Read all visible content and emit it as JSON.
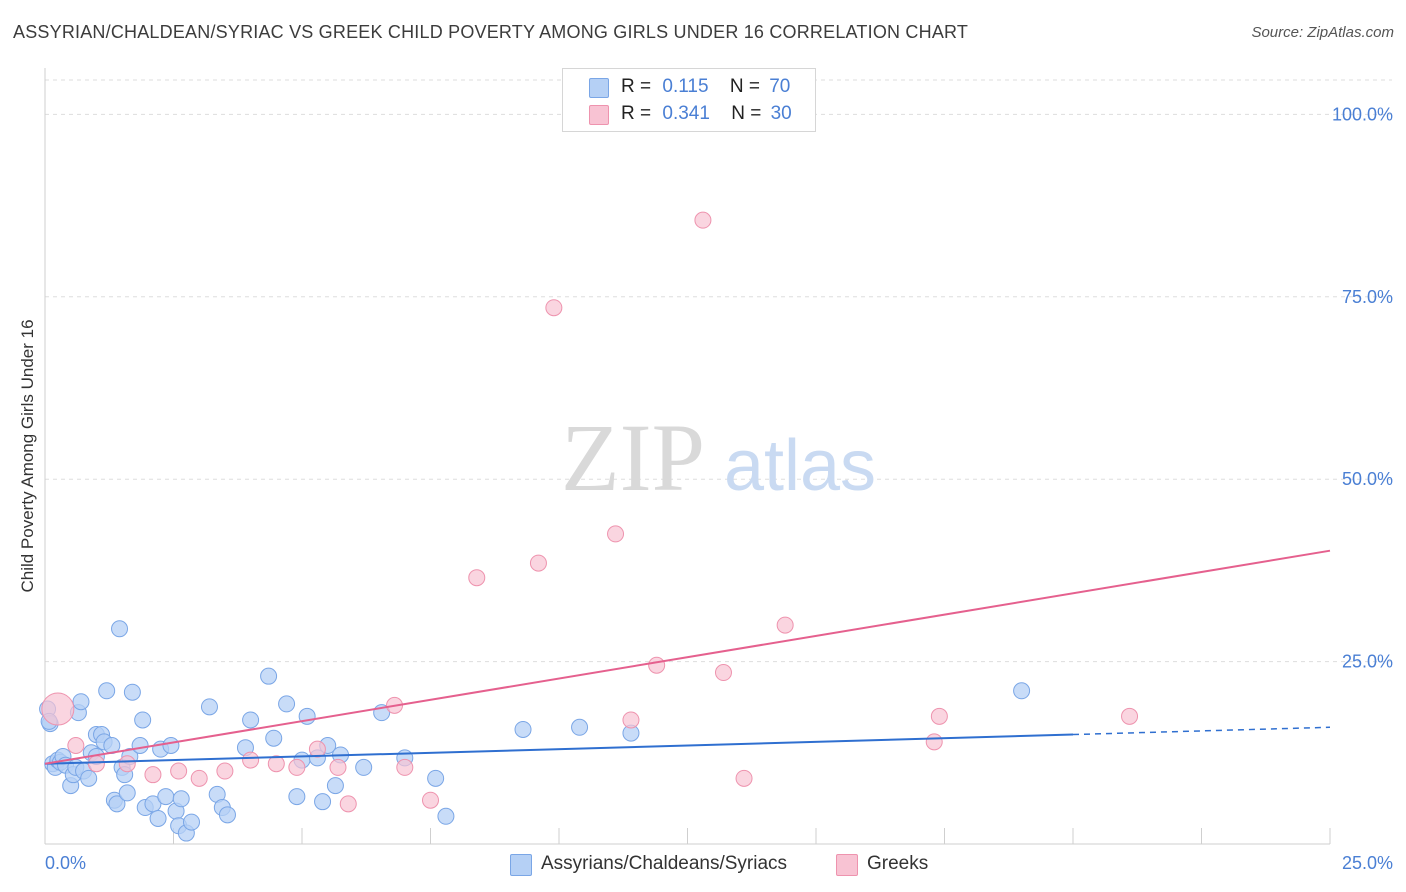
{
  "title": "ASSYRIAN/CHALDEAN/SYRIAC VS GREEK CHILD POVERTY AMONG GIRLS UNDER 16 CORRELATION CHART",
  "source": "Source: ZipAtlas.com",
  "watermark": {
    "zip": "ZIP",
    "atlas": "atlas"
  },
  "legend_top": [
    {
      "r_label": "R =",
      "r_value": "0.115",
      "n_label": "N =",
      "n_value": "70"
    },
    {
      "r_label": "R =",
      "r_value": "0.341",
      "n_label": "N =",
      "n_value": "30"
    }
  ],
  "legend_bottom": [
    {
      "label": "Assyrians/Chaldeans/Syriacs"
    },
    {
      "label": "Greeks"
    }
  ],
  "colors": {
    "blue_fill": "#b5d0f5",
    "blue_stroke": "#7aa6e6",
    "blue_line": "#2f6fd0",
    "pink_fill": "#f8c3d3",
    "pink_stroke": "#ee93ae",
    "pink_line": "#e5608e",
    "tick_label": "#4a7fd4",
    "grid": "#dddddd"
  },
  "chart_data": {
    "type": "scatter",
    "title": "ASSYRIAN/CHALDEAN/SYRIAC VS GREEK CHILD POVERTY AMONG GIRLS UNDER 16 CORRELATION CHART",
    "xlabel": "",
    "ylabel": "Child Poverty Among Girls Under 16",
    "xlim": [
      0,
      25
    ],
    "ylim": [
      0,
      100
    ],
    "x_tick_labels": [
      "0.0%",
      "25.0%"
    ],
    "y_tick_labels": [
      "25.0%",
      "50.0%",
      "75.0%",
      "100.0%"
    ],
    "y_ticks": [
      25,
      50,
      75,
      100
    ],
    "grid": true,
    "series": [
      {
        "name": "Assyrians/Chaldeans/Syriacs",
        "color": "#b5d0f5",
        "trend": {
          "x0": 0,
          "y0": 11.0,
          "x1": 20,
          "y1": 15.0,
          "dashed_to_x": 25,
          "dashed_to_y": 16.0
        },
        "points": [
          [
            0.05,
            18.5
          ],
          [
            0.1,
            16.5
          ],
          [
            0.15,
            11.0
          ],
          [
            0.2,
            10.5
          ],
          [
            0.25,
            11.5
          ],
          [
            0.3,
            11.2
          ],
          [
            0.35,
            12.0
          ],
          [
            0.4,
            10.8
          ],
          [
            0.5,
            8.0
          ],
          [
            0.55,
            9.5
          ],
          [
            0.6,
            10.5
          ],
          [
            0.65,
            18.0
          ],
          [
            0.7,
            19.5
          ],
          [
            0.75,
            10.0
          ],
          [
            0.85,
            9.0
          ],
          [
            0.9,
            12.5
          ],
          [
            1.0,
            15.0
          ],
          [
            1.1,
            15.0
          ],
          [
            1.15,
            14.0
          ],
          [
            1.2,
            21.0
          ],
          [
            1.3,
            13.5
          ],
          [
            1.35,
            6.0
          ],
          [
            1.4,
            5.5
          ],
          [
            1.45,
            29.5
          ],
          [
            1.5,
            10.5
          ],
          [
            1.55,
            9.5
          ],
          [
            1.6,
            7.0
          ],
          [
            1.65,
            12.0
          ],
          [
            1.7,
            20.8
          ],
          [
            1.85,
            13.5
          ],
          [
            1.9,
            17.0
          ],
          [
            1.95,
            5.0
          ],
          [
            2.1,
            5.5
          ],
          [
            2.2,
            3.5
          ],
          [
            2.25,
            13.0
          ],
          [
            2.35,
            6.5
          ],
          [
            2.45,
            13.5
          ],
          [
            2.55,
            4.5
          ],
          [
            2.6,
            2.5
          ],
          [
            2.65,
            6.2
          ],
          [
            2.75,
            1.5
          ],
          [
            2.85,
            3.0
          ],
          [
            3.2,
            18.8
          ],
          [
            3.35,
            6.8
          ],
          [
            3.45,
            5.0
          ],
          [
            3.55,
            4.0
          ],
          [
            3.9,
            13.2
          ],
          [
            4.0,
            17.0
          ],
          [
            4.35,
            23.0
          ],
          [
            4.45,
            14.5
          ],
          [
            4.7,
            19.2
          ],
          [
            4.9,
            6.5
          ],
          [
            5.0,
            11.5
          ],
          [
            5.1,
            17.5
          ],
          [
            5.3,
            11.8
          ],
          [
            5.4,
            5.8
          ],
          [
            5.5,
            13.5
          ],
          [
            5.65,
            8.0
          ],
          [
            5.75,
            12.2
          ],
          [
            6.2,
            10.5
          ],
          [
            6.55,
            18.0
          ],
          [
            7.0,
            11.8
          ],
          [
            7.6,
            9.0
          ],
          [
            7.8,
            3.8
          ],
          [
            9.3,
            15.7
          ],
          [
            10.4,
            16.0
          ],
          [
            11.4,
            15.2
          ],
          [
            19.0,
            21.0
          ],
          [
            0.08,
            16.8
          ],
          [
            1.0,
            12.0
          ]
        ]
      },
      {
        "name": "Greeks",
        "color": "#f8c3d3",
        "trend": {
          "x0": 0,
          "y0": 11.0,
          "x1": 25,
          "y1": 40.2
        },
        "points": [
          [
            0.25,
            18.5
          ],
          [
            0.6,
            13.5
          ],
          [
            1.0,
            11.0
          ],
          [
            1.6,
            11.0
          ],
          [
            2.1,
            9.5
          ],
          [
            2.6,
            10.0
          ],
          [
            3.0,
            9.0
          ],
          [
            3.5,
            10.0
          ],
          [
            4.0,
            11.5
          ],
          [
            4.5,
            11.0
          ],
          [
            4.9,
            10.5
          ],
          [
            5.3,
            13.0
          ],
          [
            5.7,
            10.5
          ],
          [
            5.9,
            5.5
          ],
          [
            6.8,
            19.0
          ],
          [
            7.0,
            10.5
          ],
          [
            7.5,
            6.0
          ],
          [
            8.4,
            36.5
          ],
          [
            9.6,
            38.5
          ],
          [
            9.9,
            73.5
          ],
          [
            11.1,
            42.5
          ],
          [
            11.4,
            17.0
          ],
          [
            11.9,
            24.5
          ],
          [
            12.8,
            85.5
          ],
          [
            13.2,
            23.5
          ],
          [
            13.6,
            9.0
          ],
          [
            14.4,
            30.0
          ],
          [
            17.3,
            14.0
          ],
          [
            17.4,
            17.5
          ],
          [
            21.1,
            17.5
          ]
        ]
      }
    ]
  }
}
